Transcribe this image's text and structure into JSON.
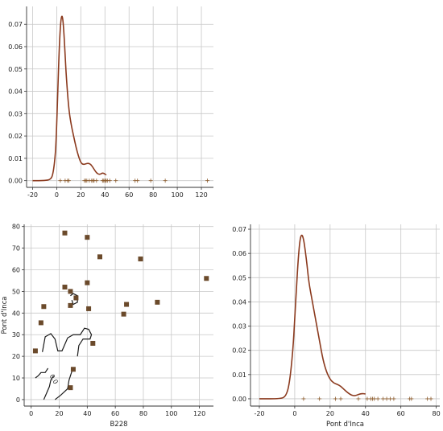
{
  "colors": {
    "kde_line": "#8b3a1e",
    "points": "#6b4a2b",
    "rug": "#8b5a2b",
    "contour": "#1a1a1a",
    "grid": "#c8c8c8"
  },
  "chart_data": [
    {
      "id": "top-left",
      "type": "line",
      "description_kind": "kde-density-with-rug",
      "xlabel": "",
      "ylabel": "",
      "xlim": [
        -25,
        130
      ],
      "ylim": [
        -0.003,
        0.078
      ],
      "x_ticks": [
        -20,
        0,
        20,
        40,
        60,
        80,
        100,
        120
      ],
      "y_ticks": [
        0.0,
        0.01,
        0.02,
        0.03,
        0.04,
        0.05,
        0.06,
        0.07
      ],
      "y_tick_labels": [
        "0.00",
        "0.01",
        "0.02",
        "0.03",
        "0.04",
        "0.05",
        "0.06",
        "0.07"
      ],
      "grid": true,
      "series": [
        {
          "x": [
            -20,
            -10,
            -5,
            -3,
            -1,
            0,
            1,
            2,
            3,
            4,
            5,
            6,
            7,
            8,
            10,
            12,
            14,
            16,
            18,
            20,
            22,
            24,
            26,
            28,
            30,
            32,
            34,
            36,
            38,
            40,
            41
          ],
          "values": [
            0,
            0,
            0.0005,
            0.003,
            0.012,
            0.025,
            0.042,
            0.058,
            0.069,
            0.074,
            0.073,
            0.066,
            0.056,
            0.046,
            0.032,
            0.025,
            0.02,
            0.015,
            0.011,
            0.008,
            0.0072,
            0.0075,
            0.0078,
            0.0074,
            0.006,
            0.0042,
            0.003,
            0.0028,
            0.0035,
            0.003,
            0.0025
          ]
        }
      ],
      "rug": [
        3,
        7,
        9,
        10,
        23,
        24,
        25,
        27,
        29,
        30,
        31,
        33,
        38,
        39,
        40,
        40,
        41,
        42,
        44,
        49,
        65,
        67,
        78,
        90,
        125
      ]
    },
    {
      "id": "bottom-left",
      "type": "scatter",
      "description_kind": "scatter-with-density-contours",
      "xlabel": "B228",
      "ylabel": "Pont d'Inca",
      "xlim": [
        -5,
        130
      ],
      "ylim": [
        -3,
        81
      ],
      "x_ticks": [
        0,
        20,
        40,
        60,
        80,
        100,
        120
      ],
      "y_ticks": [
        0,
        10,
        20,
        30,
        40,
        50,
        60,
        70,
        80
      ],
      "grid": true,
      "points": [
        {
          "x": 24,
          "y": 77
        },
        {
          "x": 40,
          "y": 75
        },
        {
          "x": 49,
          "y": 66
        },
        {
          "x": 78,
          "y": 65
        },
        {
          "x": 125,
          "y": 56
        },
        {
          "x": 40,
          "y": 54
        },
        {
          "x": 24,
          "y": 52
        },
        {
          "x": 28,
          "y": 50
        },
        {
          "x": 32,
          "y": 47
        },
        {
          "x": 90,
          "y": 45
        },
        {
          "x": 68,
          "y": 44
        },
        {
          "x": 28,
          "y": 43.5
        },
        {
          "x": 9,
          "y": 43
        },
        {
          "x": 41,
          "y": 42
        },
        {
          "x": 66,
          "y": 39.5
        },
        {
          "x": 7,
          "y": 35.5
        },
        {
          "x": 44,
          "y": 26
        },
        {
          "x": 3,
          "y": 22.5
        },
        {
          "x": 30,
          "y": 14
        },
        {
          "x": 28,
          "y": 5.5
        }
      ],
      "contour_label": "0.0",
      "contours": [
        [
          [
            28,
            48
          ],
          [
            30,
            49
          ],
          [
            33,
            48
          ],
          [
            33,
            45
          ],
          [
            30,
            44
          ],
          [
            29,
            46
          ]
        ],
        [
          [
            8,
            22
          ],
          [
            10,
            29
          ],
          [
            14,
            30.5
          ],
          [
            17,
            28
          ],
          [
            19,
            22.5
          ],
          [
            22,
            22.5
          ],
          [
            26,
            28.5
          ],
          [
            30,
            30
          ],
          [
            35,
            30
          ],
          [
            38,
            33
          ],
          [
            41,
            32.5
          ],
          [
            43,
            30
          ],
          [
            42,
            28
          ],
          [
            37,
            28
          ],
          [
            34,
            25
          ],
          [
            33,
            20
          ]
        ],
        [
          [
            3,
            10
          ],
          [
            5,
            11
          ],
          [
            7,
            12.5
          ],
          [
            10,
            12.5
          ],
          [
            12,
            14.5
          ]
        ],
        [
          [
            9,
            0
          ],
          [
            11,
            3
          ],
          [
            13,
            6
          ],
          [
            14,
            9
          ],
          [
            16,
            11
          ]
        ],
        [
          [
            17,
            0
          ],
          [
            21,
            2
          ],
          [
            26,
            5
          ],
          [
            27,
            9
          ],
          [
            29,
            13
          ]
        ]
      ]
    },
    {
      "id": "bottom-right",
      "type": "line",
      "description_kind": "kde-density-with-rug",
      "xlabel": "Pont d'Inca",
      "ylabel": "",
      "xlim": [
        -25,
        82
      ],
      "ylim": [
        -0.003,
        0.072
      ],
      "x_ticks": [
        -20,
        0,
        20,
        40,
        60,
        80
      ],
      "y_ticks": [
        0.0,
        0.01,
        0.02,
        0.03,
        0.04,
        0.05,
        0.06,
        0.07
      ],
      "y_tick_labels": [
        "0.00",
        "0.01",
        "0.02",
        "0.03",
        "0.04",
        "0.05",
        "0.06",
        "0.07"
      ],
      "grid": true,
      "series": [
        {
          "x": [
            -20,
            -8,
            -5,
            -3,
            -1,
            0,
            1,
            2,
            3,
            4,
            5,
            6,
            7,
            8,
            10,
            12,
            14,
            16,
            18,
            20,
            22,
            24,
            26,
            28,
            30,
            32,
            34,
            36,
            38,
            40
          ],
          "values": [
            0,
            0,
            0.001,
            0.006,
            0.02,
            0.033,
            0.046,
            0.058,
            0.066,
            0.068,
            0.066,
            0.061,
            0.055,
            0.048,
            0.04,
            0.032,
            0.024,
            0.016,
            0.011,
            0.008,
            0.0065,
            0.006,
            0.0052,
            0.0038,
            0.0025,
            0.0015,
            0.0012,
            0.0018,
            0.0022,
            0.002
          ]
        }
      ],
      "rug": [
        5,
        14,
        23,
        26,
        36,
        41,
        43,
        44,
        45,
        47,
        50,
        52,
        54,
        56,
        65,
        66,
        75,
        77
      ]
    }
  ]
}
